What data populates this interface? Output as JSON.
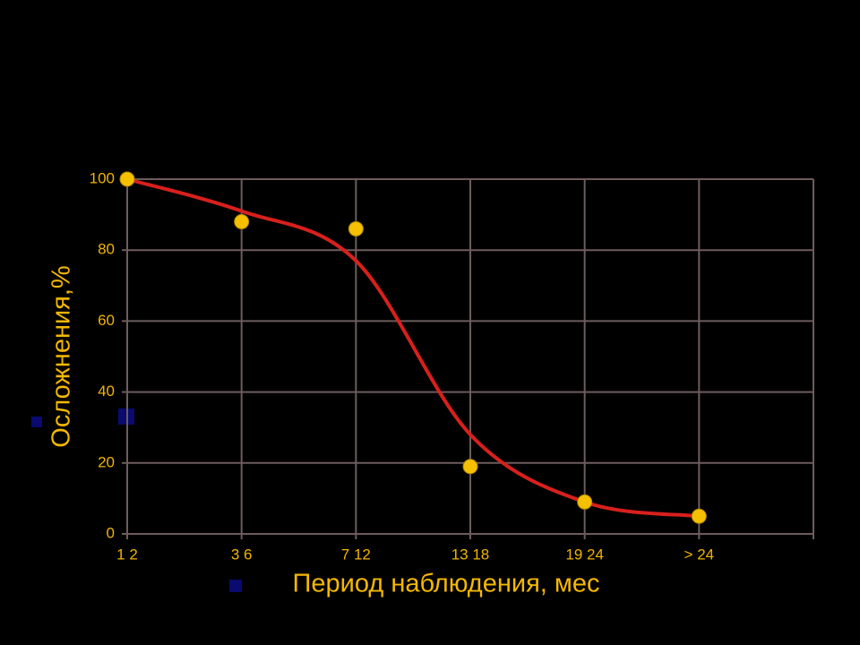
{
  "chart_data": {
    "type": "line",
    "x_label": "Период наблюдения, мес",
    "y_label": "Осложнения,%",
    "categories": [
      "1 2",
      "3 6",
      "7 12",
      "13 18",
      "19 24",
      "> 24"
    ],
    "series": [
      {
        "style": "markers",
        "color": "#f5c000",
        "values": [
          100,
          88,
          86,
          19,
          9,
          5
        ]
      },
      {
        "style": "smooth",
        "color": "#d8201c",
        "values": [
          100,
          91,
          77,
          28,
          9,
          5
        ]
      }
    ],
    "ylim": [
      0,
      100
    ],
    "yticks": [
      0,
      20,
      40,
      60,
      80,
      100
    ],
    "grid": true,
    "grid_color": "#6e5c5c"
  }
}
